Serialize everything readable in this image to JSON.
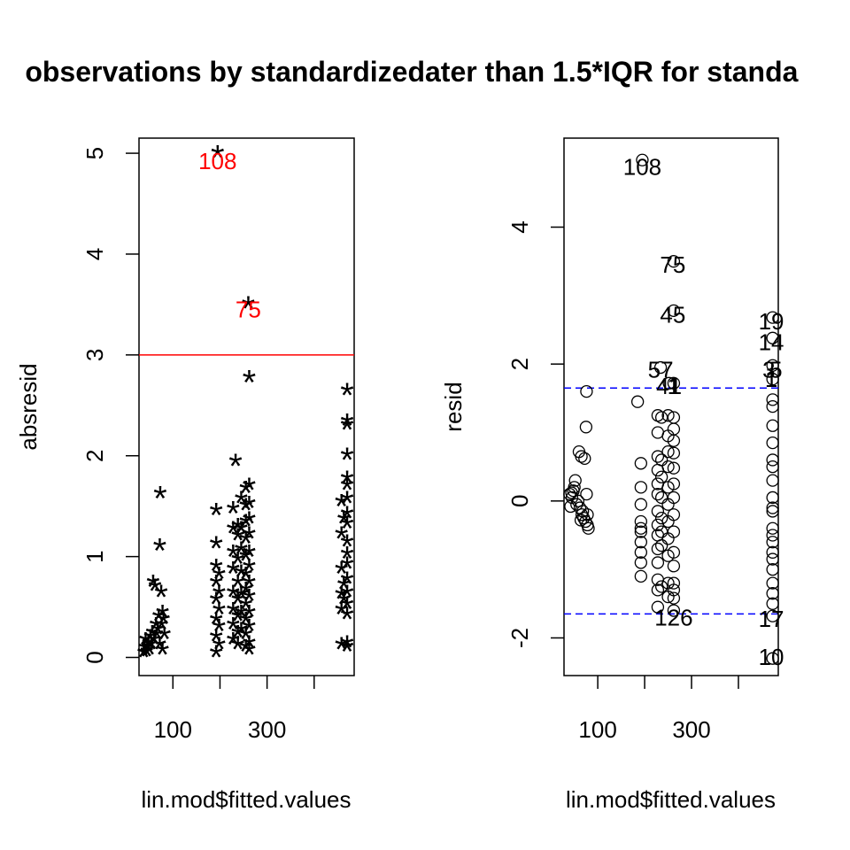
{
  "chart_data": [
    {
      "type": "scatter",
      "title": "observations by standardized",
      "xlabel": "lin.mod$fitted.values",
      "ylabel": "absresid",
      "xlim": [
        28,
        485
      ],
      "ylim": [
        -0.18,
        5.15
      ],
      "xticks": [
        100,
        200,
        300,
        400
      ],
      "xtick_labels": [
        "100",
        "",
        "300",
        ""
      ],
      "yticks": [
        0,
        1,
        2,
        3,
        4,
        5
      ],
      "ytick_labels": [
        "0",
        "1",
        "2",
        "3",
        "4",
        "5"
      ],
      "marker": "*",
      "hline": {
        "y": 3,
        "color": "#ff0000"
      },
      "outlier_labels": [
        {
          "text": "108",
          "x": 195,
          "y": 4.92,
          "color": "#ff0000"
        },
        {
          "text": "75",
          "x": 260,
          "y": 3.45,
          "color": "#ff0000"
        }
      ],
      "points": [
        {
          "x": 195,
          "y": 4.98
        },
        {
          "x": 260,
          "y": 3.48
        },
        {
          "x": 262,
          "y": 2.75
        },
        {
          "x": 470,
          "y": 2.62
        },
        {
          "x": 470,
          "y": 2.32
        },
        {
          "x": 470,
          "y": 2.28
        },
        {
          "x": 470,
          "y": 1.98
        },
        {
          "x": 470,
          "y": 1.75
        },
        {
          "x": 470,
          "y": 1.68
        },
        {
          "x": 470,
          "y": 1.55
        },
        {
          "x": 470,
          "y": 1.4
        },
        {
          "x": 470,
          "y": 1.3
        },
        {
          "x": 470,
          "y": 1.12
        },
        {
          "x": 470,
          "y": 1.0
        },
        {
          "x": 470,
          "y": 0.9
        },
        {
          "x": 470,
          "y": 0.75
        },
        {
          "x": 470,
          "y": 0.62
        },
        {
          "x": 470,
          "y": 0.5
        },
        {
          "x": 470,
          "y": 0.4
        },
        {
          "x": 470,
          "y": 0.12
        },
        {
          "x": 470,
          "y": 0.08
        },
        {
          "x": 458,
          "y": 1.52
        },
        {
          "x": 458,
          "y": 1.2
        },
        {
          "x": 458,
          "y": 0.85
        },
        {
          "x": 458,
          "y": 0.6
        },
        {
          "x": 458,
          "y": 0.45
        },
        {
          "x": 458,
          "y": 0.1
        },
        {
          "x": 463,
          "y": 1.35
        },
        {
          "x": 463,
          "y": 0.7
        },
        {
          "x": 463,
          "y": 0.55
        },
        {
          "x": 233,
          "y": 1.92
        },
        {
          "x": 228,
          "y": 1.45
        },
        {
          "x": 228,
          "y": 1.25
        },
        {
          "x": 228,
          "y": 1.02
        },
        {
          "x": 228,
          "y": 0.85
        },
        {
          "x": 228,
          "y": 0.62
        },
        {
          "x": 228,
          "y": 0.45
        },
        {
          "x": 228,
          "y": 0.3
        },
        {
          "x": 228,
          "y": 0.15
        },
        {
          "x": 238,
          "y": 1.28
        },
        {
          "x": 238,
          "y": 1.18
        },
        {
          "x": 238,
          "y": 0.95
        },
        {
          "x": 238,
          "y": 0.72
        },
        {
          "x": 238,
          "y": 0.55
        },
        {
          "x": 238,
          "y": 0.38
        },
        {
          "x": 238,
          "y": 0.22
        },
        {
          "x": 238,
          "y": 0.1
        },
        {
          "x": 245,
          "y": 1.55
        },
        {
          "x": 245,
          "y": 1.25
        },
        {
          "x": 245,
          "y": 1.05
        },
        {
          "x": 245,
          "y": 0.82
        },
        {
          "x": 245,
          "y": 0.6
        },
        {
          "x": 245,
          "y": 0.42
        },
        {
          "x": 245,
          "y": 0.25
        },
        {
          "x": 255,
          "y": 1.65
        },
        {
          "x": 255,
          "y": 1.48
        },
        {
          "x": 255,
          "y": 1.32
        },
        {
          "x": 255,
          "y": 1.15
        },
        {
          "x": 255,
          "y": 0.98
        },
        {
          "x": 255,
          "y": 0.8
        },
        {
          "x": 255,
          "y": 0.65
        },
        {
          "x": 255,
          "y": 0.5
        },
        {
          "x": 255,
          "y": 0.35
        },
        {
          "x": 255,
          "y": 0.2
        },
        {
          "x": 255,
          "y": 0.08
        },
        {
          "x": 262,
          "y": 1.68
        },
        {
          "x": 262,
          "y": 1.5
        },
        {
          "x": 262,
          "y": 1.35
        },
        {
          "x": 262,
          "y": 1.2
        },
        {
          "x": 262,
          "y": 1.02
        },
        {
          "x": 262,
          "y": 0.88
        },
        {
          "x": 262,
          "y": 0.72
        },
        {
          "x": 262,
          "y": 0.58
        },
        {
          "x": 262,
          "y": 0.42
        },
        {
          "x": 262,
          "y": 0.28
        },
        {
          "x": 262,
          "y": 0.12
        },
        {
          "x": 262,
          "y": 0.05
        },
        {
          "x": 192,
          "y": 1.43
        },
        {
          "x": 192,
          "y": 1.1
        },
        {
          "x": 192,
          "y": 0.88
        },
        {
          "x": 192,
          "y": 0.72
        },
        {
          "x": 192,
          "y": 0.55
        },
        {
          "x": 192,
          "y": 0.35
        },
        {
          "x": 192,
          "y": 0.18
        },
        {
          "x": 192,
          "y": 0.02
        },
        {
          "x": 198,
          "y": 0.8
        },
        {
          "x": 198,
          "y": 0.62
        },
        {
          "x": 198,
          "y": 0.45
        },
        {
          "x": 198,
          "y": 0.28
        },
        {
          "x": 198,
          "y": 0.1
        },
        {
          "x": 73,
          "y": 1.6
        },
        {
          "x": 72,
          "y": 1.08
        },
        {
          "x": 58,
          "y": 0.72
        },
        {
          "x": 62,
          "y": 0.68
        },
        {
          "x": 75,
          "y": 0.62
        },
        {
          "x": 78,
          "y": 0.42
        },
        {
          "x": 80,
          "y": 0.35
        },
        {
          "x": 76,
          "y": 0.3
        },
        {
          "x": 70,
          "y": 0.38
        },
        {
          "x": 68,
          "y": 0.25
        },
        {
          "x": 66,
          "y": 0.2
        },
        {
          "x": 64,
          "y": 0.3
        },
        {
          "x": 60,
          "y": 0.15
        },
        {
          "x": 56,
          "y": 0.22
        },
        {
          "x": 54,
          "y": 0.1
        },
        {
          "x": 52,
          "y": 0.18
        },
        {
          "x": 50,
          "y": 0.05
        },
        {
          "x": 48,
          "y": 0.12
        },
        {
          "x": 46,
          "y": 0.08
        },
        {
          "x": 44,
          "y": 0.03
        },
        {
          "x": 42,
          "y": 0.15
        },
        {
          "x": 40,
          "y": 0.07
        },
        {
          "x": 38,
          "y": 0.02
        },
        {
          "x": 72,
          "y": 0.1
        },
        {
          "x": 78,
          "y": 0.05
        },
        {
          "x": 82,
          "y": 0.2
        }
      ]
    },
    {
      "type": "scatter",
      "title": "ater than 1.5*IQR for standa",
      "xlabel": "lin.mod$fitted.values",
      "ylabel": "resid",
      "xlim": [
        28,
        485
      ],
      "ylim": [
        -2.55,
        5.3
      ],
      "xticks": [
        100,
        200,
        300,
        400
      ],
      "xtick_labels": [
        "100",
        "",
        "300",
        ""
      ],
      "yticks": [
        -2,
        0,
        2,
        4
      ],
      "ytick_labels": [
        "-2",
        "0",
        "2",
        "4"
      ],
      "marker": "o",
      "hlines": [
        {
          "y": 1.65,
          "color": "#0000ff",
          "style": "dashed"
        },
        {
          "y": -1.65,
          "color": "#0000ff",
          "style": "dashed"
        }
      ],
      "point_labels": [
        {
          "text": "108",
          "x": 195,
          "y": 4.88
        },
        {
          "text": "75",
          "x": 260,
          "y": 3.45
        },
        {
          "text": "45",
          "x": 260,
          "y": 2.72
        },
        {
          "text": "57",
          "x": 234,
          "y": 1.92
        },
        {
          "text": "41",
          "x": 252,
          "y": 1.68
        },
        {
          "text": "1",
          "x": 262,
          "y": 1.68
        },
        {
          "text": "19",
          "x": 470,
          "y": 2.62
        },
        {
          "text": "14",
          "x": 470,
          "y": 2.32
        },
        {
          "text": "3",
          "x": 465,
          "y": 1.92
        },
        {
          "text": "5",
          "x": 480,
          "y": 1.92
        },
        {
          "text": "1",
          "x": 470,
          "y": 1.78
        },
        {
          "text": "126",
          "x": 262,
          "y": -1.7
        },
        {
          "text": "17",
          "x": 470,
          "y": -1.72
        },
        {
          "text": "10",
          "x": 470,
          "y": -2.28
        }
      ],
      "points": [
        {
          "x": 195,
          "y": 4.98
        },
        {
          "x": 262,
          "y": 3.5
        },
        {
          "x": 262,
          "y": 2.78
        },
        {
          "x": 234,
          "y": 1.95
        },
        {
          "x": 252,
          "y": 1.72
        },
        {
          "x": 262,
          "y": 1.72
        },
        {
          "x": 473,
          "y": 2.68
        },
        {
          "x": 473,
          "y": 2.38
        },
        {
          "x": 473,
          "y": 1.98
        },
        {
          "x": 473,
          "y": 1.78
        },
        {
          "x": 473,
          "y": 1.48
        },
        {
          "x": 473,
          "y": 1.38
        },
        {
          "x": 473,
          "y": 1.1
        },
        {
          "x": 473,
          "y": 0.85
        },
        {
          "x": 473,
          "y": 0.6
        },
        {
          "x": 473,
          "y": 0.5
        },
        {
          "x": 473,
          "y": 0.3
        },
        {
          "x": 473,
          "y": 0.05
        },
        {
          "x": 473,
          "y": -0.1
        },
        {
          "x": 473,
          "y": -0.15
        },
        {
          "x": 473,
          "y": -0.4
        },
        {
          "x": 473,
          "y": -0.5
        },
        {
          "x": 473,
          "y": -0.6
        },
        {
          "x": 473,
          "y": -0.75
        },
        {
          "x": 473,
          "y": -0.85
        },
        {
          "x": 473,
          "y": -1.0
        },
        {
          "x": 473,
          "y": -1.2
        },
        {
          "x": 473,
          "y": -1.35
        },
        {
          "x": 473,
          "y": -1.5
        },
        {
          "x": 473,
          "y": -1.68
        },
        {
          "x": 473,
          "y": -2.3
        },
        {
          "x": 76,
          "y": 1.6
        },
        {
          "x": 75,
          "y": 1.08
        },
        {
          "x": 60,
          "y": 0.72
        },
        {
          "x": 65,
          "y": 0.65
        },
        {
          "x": 72,
          "y": 0.62
        },
        {
          "x": 52,
          "y": 0.3
        },
        {
          "x": 48,
          "y": 0.15
        },
        {
          "x": 45,
          "y": 0.05
        },
        {
          "x": 40,
          "y": 0.1
        },
        {
          "x": 55,
          "y": -0.05
        },
        {
          "x": 58,
          "y": 0.0
        },
        {
          "x": 62,
          "y": -0.1
        },
        {
          "x": 66,
          "y": -0.2
        },
        {
          "x": 70,
          "y": -0.25
        },
        {
          "x": 74,
          "y": -0.3
        },
        {
          "x": 78,
          "y": -0.35
        },
        {
          "x": 80,
          "y": -0.4
        },
        {
          "x": 64,
          "y": -0.28
        },
        {
          "x": 68,
          "y": -0.15
        },
        {
          "x": 50,
          "y": 0.2
        },
        {
          "x": 44,
          "y": 0.12
        },
        {
          "x": 42,
          "y": -0.08
        },
        {
          "x": 76,
          "y": 0.1
        },
        {
          "x": 78,
          "y": -0.2
        },
        {
          "x": 185,
          "y": 1.45
        },
        {
          "x": 192,
          "y": 0.55
        },
        {
          "x": 192,
          "y": 0.2
        },
        {
          "x": 192,
          "y": -0.05
        },
        {
          "x": 192,
          "y": -0.3
        },
        {
          "x": 192,
          "y": -0.45
        },
        {
          "x": 192,
          "y": -0.6
        },
        {
          "x": 192,
          "y": -0.75
        },
        {
          "x": 192,
          "y": -0.9
        },
        {
          "x": 192,
          "y": -1.1
        },
        {
          "x": 192,
          "y": -0.4
        },
        {
          "x": 228,
          "y": 1.25
        },
        {
          "x": 228,
          "y": 1.0
        },
        {
          "x": 228,
          "y": 0.65
        },
        {
          "x": 228,
          "y": 0.45
        },
        {
          "x": 228,
          "y": 0.25
        },
        {
          "x": 228,
          "y": 0.1
        },
        {
          "x": 228,
          "y": -0.15
        },
        {
          "x": 228,
          "y": -0.35
        },
        {
          "x": 228,
          "y": -0.5
        },
        {
          "x": 228,
          "y": -0.7
        },
        {
          "x": 228,
          "y": -0.9
        },
        {
          "x": 228,
          "y": -1.15
        },
        {
          "x": 228,
          "y": -1.3
        },
        {
          "x": 228,
          "y": -1.55
        },
        {
          "x": 236,
          "y": 1.22
        },
        {
          "x": 236,
          "y": 0.6
        },
        {
          "x": 236,
          "y": 0.35
        },
        {
          "x": 236,
          "y": 0.05
        },
        {
          "x": 236,
          "y": -0.25
        },
        {
          "x": 236,
          "y": -0.45
        },
        {
          "x": 236,
          "y": -0.65
        },
        {
          "x": 236,
          "y": -1.25
        },
        {
          "x": 250,
          "y": 1.25
        },
        {
          "x": 250,
          "y": 0.95
        },
        {
          "x": 250,
          "y": 0.72
        },
        {
          "x": 250,
          "y": 0.5
        },
        {
          "x": 250,
          "y": 0.2
        },
        {
          "x": 250,
          "y": -0.05
        },
        {
          "x": 250,
          "y": -0.3
        },
        {
          "x": 250,
          "y": -0.55
        },
        {
          "x": 250,
          "y": -0.8
        },
        {
          "x": 250,
          "y": -1.2
        },
        {
          "x": 250,
          "y": -1.4
        },
        {
          "x": 262,
          "y": 1.22
        },
        {
          "x": 262,
          "y": 1.05
        },
        {
          "x": 262,
          "y": 0.88
        },
        {
          "x": 262,
          "y": 0.7
        },
        {
          "x": 262,
          "y": 0.48
        },
        {
          "x": 262,
          "y": 0.25
        },
        {
          "x": 262,
          "y": 0.05
        },
        {
          "x": 262,
          "y": -0.2
        },
        {
          "x": 262,
          "y": -0.45
        },
        {
          "x": 262,
          "y": -0.75
        },
        {
          "x": 262,
          "y": -0.95
        },
        {
          "x": 262,
          "y": -1.2
        },
        {
          "x": 262,
          "y": -1.3
        },
        {
          "x": 262,
          "y": -1.42
        },
        {
          "x": 262,
          "y": -1.6
        }
      ]
    }
  ]
}
